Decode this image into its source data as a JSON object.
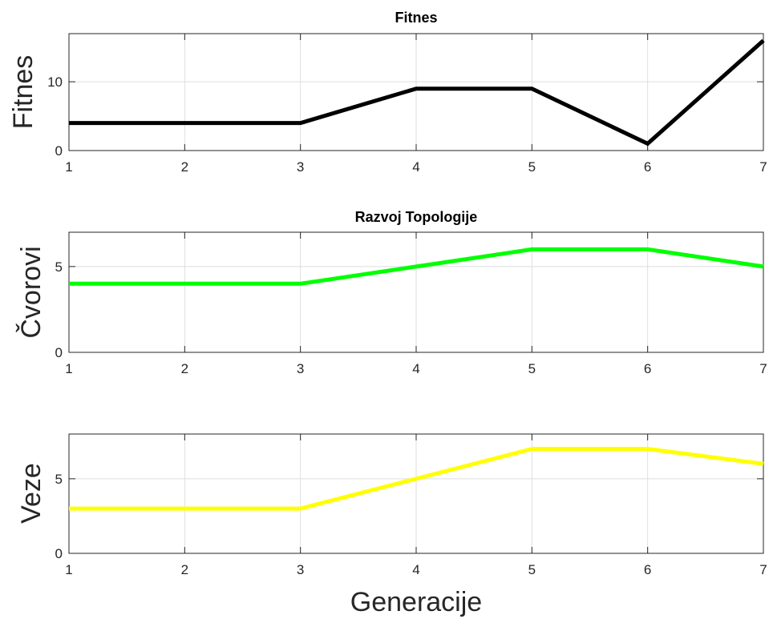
{
  "chart_data": [
    {
      "type": "line",
      "title": "Fitnes",
      "xlabel": "",
      "ylabel": "Fitnes",
      "x": [
        1,
        2,
        3,
        4,
        5,
        6,
        7
      ],
      "xlim": [
        1,
        7
      ],
      "ylim": [
        0,
        17
      ],
      "xticks": [
        "1",
        "2",
        "3",
        "4",
        "5",
        "6",
        "7"
      ],
      "yticks": [
        0,
        10
      ],
      "grid": true,
      "series": [
        {
          "color": "#000000",
          "values": [
            4,
            4,
            4,
            9,
            9,
            1,
            16
          ]
        }
      ]
    },
    {
      "type": "line",
      "title": "Razvoj Topologije",
      "xlabel": "",
      "ylabel": "Čvorovi",
      "x": [
        1,
        2,
        3,
        4,
        5,
        6,
        7
      ],
      "xlim": [
        1,
        7
      ],
      "ylim": [
        0,
        7
      ],
      "xticks": [
        "1",
        "2",
        "3",
        "4",
        "5",
        "6",
        "7"
      ],
      "yticks": [
        0,
        5
      ],
      "grid": true,
      "series": [
        {
          "color": "#00ff00",
          "values": [
            4,
            4,
            4,
            5,
            6,
            6,
            5
          ]
        }
      ]
    },
    {
      "type": "line",
      "title": "",
      "xlabel": "Generacije",
      "ylabel": "Veze",
      "x": [
        1,
        2,
        3,
        4,
        5,
        6,
        7
      ],
      "xlim": [
        1,
        7
      ],
      "ylim": [
        0,
        8
      ],
      "xticks": [
        "1",
        "2",
        "3",
        "4",
        "5",
        "6",
        "7"
      ],
      "yticks": [
        0,
        5
      ],
      "grid": true,
      "series": [
        {
          "color": "#ffff00",
          "values": [
            3,
            3,
            3,
            5,
            7,
            7,
            6
          ]
        }
      ]
    }
  ]
}
